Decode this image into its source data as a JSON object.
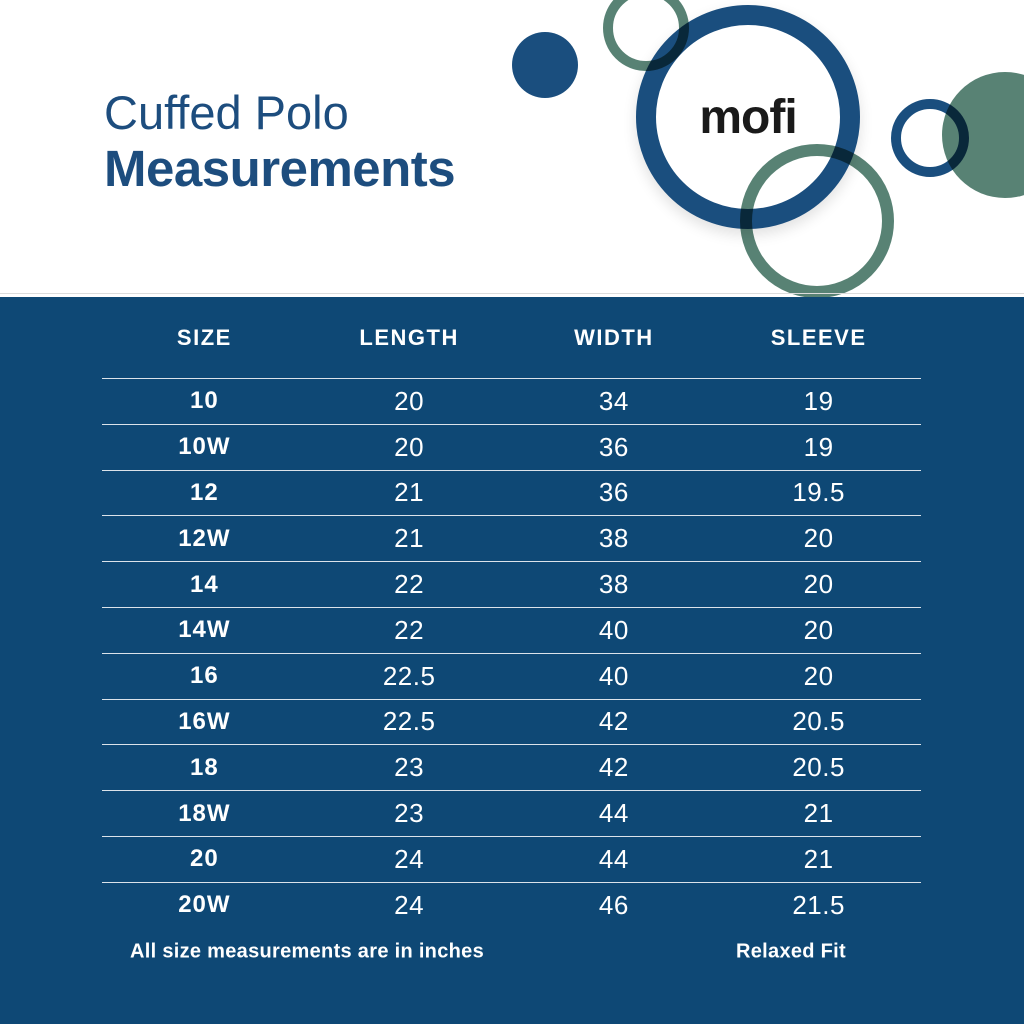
{
  "hero": {
    "title_line1": "Cuffed Polo",
    "title_line2": "Measurements",
    "logo_text": "mofi"
  },
  "table": {
    "columns": [
      "SIZE",
      "LENGTH",
      "WIDTH",
      "SLEEVE"
    ],
    "rows": [
      [
        "10",
        "20",
        "34",
        "19"
      ],
      [
        "10W",
        "20",
        "36",
        "19"
      ],
      [
        "12",
        "21",
        "36",
        "19.5"
      ],
      [
        "12W",
        "21",
        "38",
        "20"
      ],
      [
        "14",
        "22",
        "38",
        "20"
      ],
      [
        "14W",
        "22",
        "40",
        "20"
      ],
      [
        "16",
        "22.5",
        "40",
        "20"
      ],
      [
        "16W",
        "22.5",
        "42",
        "20.5"
      ],
      [
        "18",
        "23",
        "42",
        "20.5"
      ],
      [
        "18W",
        "23",
        "44",
        "21"
      ],
      [
        "20",
        "24",
        "44",
        "21"
      ],
      [
        "20W",
        "24",
        "46",
        "21.5"
      ]
    ]
  },
  "footer": {
    "note": "All size measurements are in inches",
    "fit": "Relaxed Fit"
  },
  "colors": {
    "navy": "#1a4e7e",
    "band": "#0e4875",
    "green": "#588274",
    "title": "#1d4d7e",
    "logo": "#1a1a1a",
    "white": "#ffffff"
  }
}
